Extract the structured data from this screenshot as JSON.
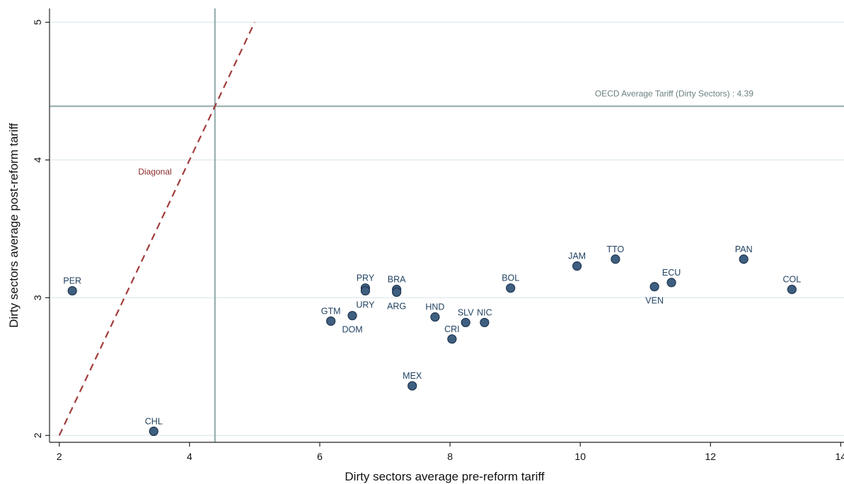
{
  "chart_data": {
    "type": "scatter",
    "xlabel": "Dirty sectors average pre-reform tariff",
    "ylabel": "Dirty sectors average post-reform tariff",
    "xlim": [
      1.85,
      14.05
    ],
    "ylim": [
      1.95,
      5.1
    ],
    "xticks": [
      2,
      4,
      6,
      8,
      10,
      12,
      14
    ],
    "yticks": [
      2,
      3,
      4,
      5
    ],
    "grid": true,
    "colors": {
      "point": "#3f5f80",
      "point_stroke": "#1e3550",
      "reference": "#8fa8a8",
      "diagonal": "#a33b3b",
      "grid": "#e2ecf0"
    },
    "reference_lines": {
      "horizontal": {
        "y": 4.39,
        "label": "OECD Average Tariff (Dirty Sectors) : 4.39"
      },
      "vertical": {
        "x": 4.39
      }
    },
    "diagonal": {
      "label": "Diagonal",
      "x_range": [
        2,
        5
      ]
    },
    "points": [
      {
        "label": "PER",
        "x": 2.2,
        "y": 3.05,
        "label_pos": "above"
      },
      {
        "label": "CHL",
        "x": 3.45,
        "y": 2.03,
        "label_pos": "above"
      },
      {
        "label": "GTM",
        "x": 6.17,
        "y": 2.83,
        "label_pos": "above"
      },
      {
        "label": "DOM",
        "x": 6.5,
        "y": 2.87,
        "label_pos": "below"
      },
      {
        "label": "PRY",
        "x": 6.7,
        "y": 3.07,
        "label_pos": "above"
      },
      {
        "label": "URY",
        "x": 6.7,
        "y": 3.05,
        "label_pos": "below"
      },
      {
        "label": "BRA",
        "x": 7.18,
        "y": 3.06,
        "label_pos": "above"
      },
      {
        "label": "ARG",
        "x": 7.18,
        "y": 3.04,
        "label_pos": "below"
      },
      {
        "label": "MEX",
        "x": 7.42,
        "y": 2.36,
        "label_pos": "above"
      },
      {
        "label": "HND",
        "x": 7.77,
        "y": 2.86,
        "label_pos": "above"
      },
      {
        "label": "CRI",
        "x": 8.03,
        "y": 2.7,
        "label_pos": "above"
      },
      {
        "label": "SLV",
        "x": 8.24,
        "y": 2.82,
        "label_pos": "above"
      },
      {
        "label": "NIC",
        "x": 8.53,
        "y": 2.82,
        "label_pos": "above"
      },
      {
        "label": "BOL",
        "x": 8.93,
        "y": 3.07,
        "label_pos": "above"
      },
      {
        "label": "JAM",
        "x": 9.95,
        "y": 3.23,
        "label_pos": "above"
      },
      {
        "label": "TTO",
        "x": 10.54,
        "y": 3.28,
        "label_pos": "above"
      },
      {
        "label": "VEN",
        "x": 11.14,
        "y": 3.08,
        "label_pos": "below"
      },
      {
        "label": "ECU",
        "x": 11.4,
        "y": 3.11,
        "label_pos": "above"
      },
      {
        "label": "PAN",
        "x": 12.51,
        "y": 3.28,
        "label_pos": "above"
      },
      {
        "label": "COL",
        "x": 13.25,
        "y": 3.06,
        "label_pos": "above"
      }
    ]
  }
}
